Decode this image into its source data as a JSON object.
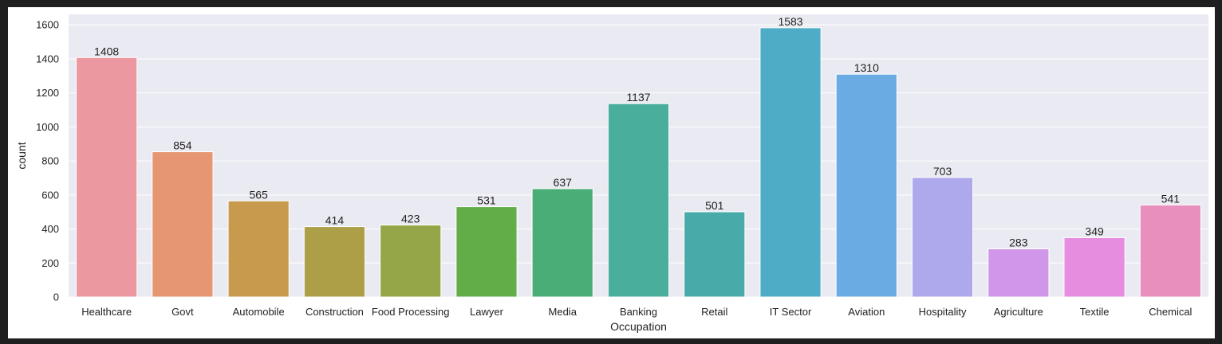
{
  "chart_data": {
    "type": "bar",
    "title": "",
    "xlabel": "Occupation",
    "ylabel": "count",
    "categories": [
      "Healthcare",
      "Govt",
      "Automobile",
      "Construction",
      "Food Processing",
      "Lawyer",
      "Media",
      "Banking",
      "Retail",
      "IT Sector",
      "Aviation",
      "Hospitality",
      "Agriculture",
      "Textile",
      "Chemical"
    ],
    "values": [
      1408,
      854,
      565,
      414,
      423,
      531,
      637,
      1137,
      501,
      1583,
      1310,
      703,
      283,
      349,
      541
    ],
    "colors": [
      "#eb98a1",
      "#e69671",
      "#c89a4d",
      "#ad9f48",
      "#95a648",
      "#62ad48",
      "#4aad77",
      "#49ae9c",
      "#48aaa9",
      "#4eacc6",
      "#69abe2",
      "#aea9ec",
      "#d096e9",
      "#e68ddf",
      "#e88fbe"
    ],
    "yticks": [
      0,
      200,
      400,
      600,
      800,
      1000,
      1200,
      1400,
      1600
    ],
    "ylim": [
      0,
      1662
    ],
    "grid": true,
    "background": "#eaeaf2",
    "grid_color": "#ffffff"
  }
}
